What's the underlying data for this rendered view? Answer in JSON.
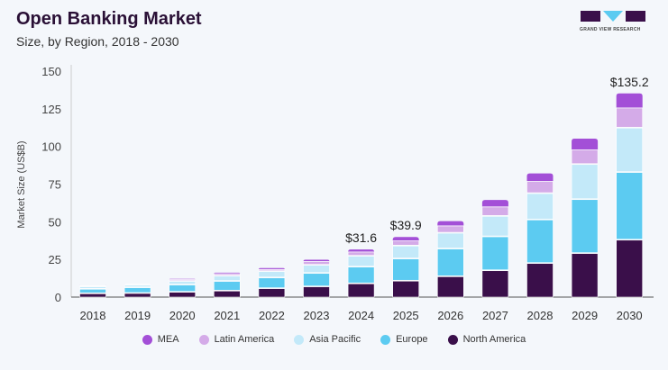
{
  "header": {
    "title": "Open Banking Market",
    "subtitle": "Size, by Region, 2018 - 2030",
    "logo_text": "GRAND VIEW RESEARCH"
  },
  "chart_data": {
    "type": "bar",
    "stacked": true,
    "title": "Open Banking Market",
    "subtitle": "Size, by Region, 2018 - 2030",
    "xlabel": "",
    "ylabel": "Market Size (US$B)",
    "ylim": [
      0,
      150
    ],
    "yticks": [
      0,
      25,
      50,
      75,
      100,
      125,
      150
    ],
    "grid": false,
    "legend": "bottom",
    "categories": [
      "2018",
      "2019",
      "2020",
      "2021",
      "2022",
      "2023",
      "2024",
      "2025",
      "2026",
      "2027",
      "2028",
      "2029",
      "2030"
    ],
    "series": [
      {
        "name": "North America",
        "color": "#3a0f4a",
        "values": [
          2.2,
          2.4,
          3.2,
          4.0,
          5.6,
          6.8,
          8.8,
          10.6,
          13.5,
          17.5,
          22.3,
          28.9,
          37.8
        ]
      },
      {
        "name": "Europe",
        "color": "#5ccbf1",
        "values": [
          3.0,
          3.8,
          4.8,
          6.4,
          7.1,
          8.9,
          11.1,
          14.7,
          18.4,
          22.5,
          28.9,
          35.8,
          44.9
        ]
      },
      {
        "name": "Asia Pacific",
        "color": "#c3e9f9",
        "values": [
          1.6,
          1.6,
          2.4,
          3.5,
          4.2,
          5.4,
          7.2,
          8.6,
          10.5,
          13.6,
          17.5,
          23.3,
          29.5
        ]
      },
      {
        "name": "Latin America",
        "color": "#d4abe8",
        "values": [
          0.8,
          0.8,
          1.2,
          1.6,
          1.4,
          2.4,
          2.8,
          3.4,
          4.8,
          6.2,
          8.0,
          9.6,
          13.3
        ]
      },
      {
        "name": "MEA",
        "color": "#a34fd7",
        "values": [
          0.3,
          0.3,
          0.5,
          0.7,
          1.0,
          1.3,
          1.7,
          2.6,
          3.2,
          4.7,
          5.4,
          7.6,
          9.7
        ]
      }
    ],
    "data_labels": [
      {
        "category": "2024",
        "text": "$31.6"
      },
      {
        "category": "2025",
        "text": "$39.9"
      },
      {
        "category": "2030",
        "text": "$135.2"
      }
    ]
  }
}
